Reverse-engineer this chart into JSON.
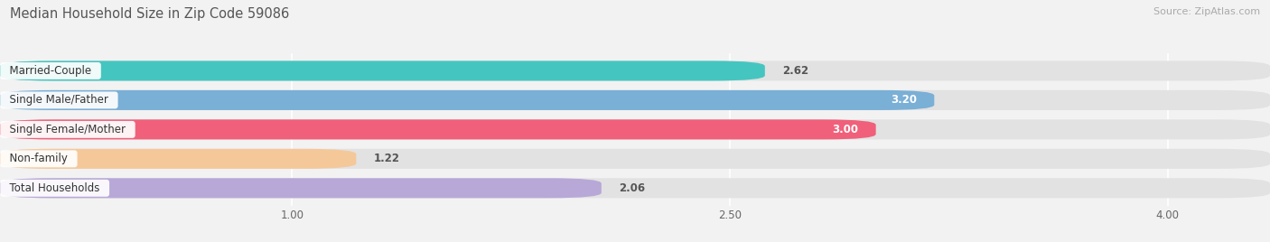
{
  "title": "Median Household Size in Zip Code 59086",
  "source": "Source: ZipAtlas.com",
  "categories": [
    "Married-Couple",
    "Single Male/Father",
    "Single Female/Mother",
    "Non-family",
    "Total Households"
  ],
  "values": [
    2.62,
    3.2,
    3.0,
    1.22,
    2.06
  ],
  "bar_colors": [
    "#45c5c0",
    "#7aafd6",
    "#f0607a",
    "#f5c89a",
    "#b8a8d8"
  ],
  "value_colors": [
    "#555555",
    "white",
    "white",
    "#555555",
    "#555555"
  ],
  "value_inside": [
    false,
    true,
    true,
    false,
    false
  ],
  "xlim_left": 0.0,
  "xlim_right": 4.35,
  "xstart": 0.0,
  "xticks": [
    1.0,
    2.5,
    4.0
  ],
  "background_color": "#f2f2f2",
  "bar_bg_color": "#e2e2e2",
  "title_fontsize": 10.5,
  "source_fontsize": 8,
  "label_fontsize": 8.5,
  "value_fontsize": 8.5,
  "bar_height": 0.68,
  "bar_gap": 0.12
}
